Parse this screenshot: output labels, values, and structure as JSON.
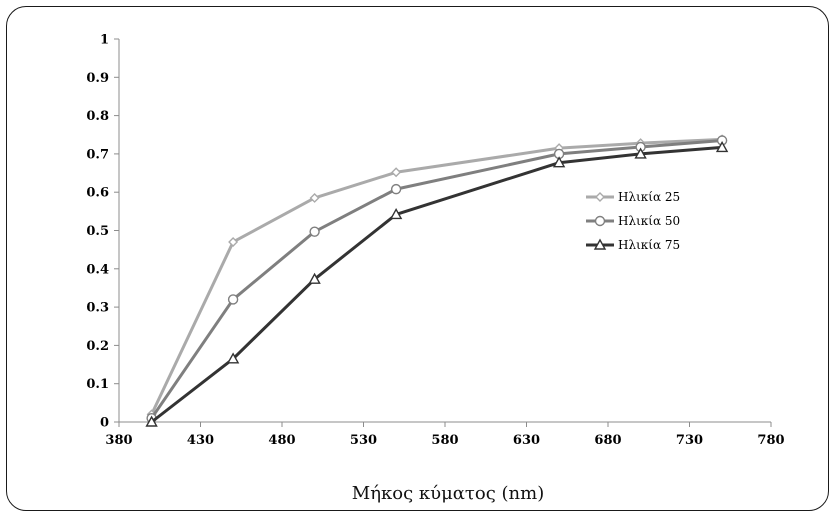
{
  "chart_data": {
    "type": "line",
    "xlabel": "Μήκος κύματος (nm)",
    "ylabel": "",
    "xlim": [
      380,
      780
    ],
    "ylim": [
      0,
      1
    ],
    "xticks": [
      380,
      430,
      480,
      530,
      580,
      630,
      680,
      730,
      780
    ],
    "yticks": [
      0,
      0.1,
      0.2,
      0.3,
      0.4,
      0.5,
      0.6,
      0.7,
      0.8,
      0.9,
      1
    ],
    "x": [
      400,
      450,
      500,
      550,
      650,
      700,
      750
    ],
    "grid": false,
    "legend_position": "right",
    "series": [
      {
        "name": "Ηλικία 25",
        "marker": "diamond",
        "color": "#aaaaaa",
        "values": [
          0.02,
          0.47,
          0.585,
          0.652,
          0.715,
          0.728,
          0.738
        ]
      },
      {
        "name": "Ηλικία 50",
        "marker": "circle",
        "color": "#7f7f7f",
        "values": [
          0.01,
          0.32,
          0.497,
          0.608,
          0.7,
          0.718,
          0.735
        ]
      },
      {
        "name": "Ηλικία 75",
        "marker": "triangle",
        "color": "#333333",
        "values": [
          0.0,
          0.165,
          0.373,
          0.542,
          0.677,
          0.7,
          0.717
        ]
      }
    ]
  }
}
